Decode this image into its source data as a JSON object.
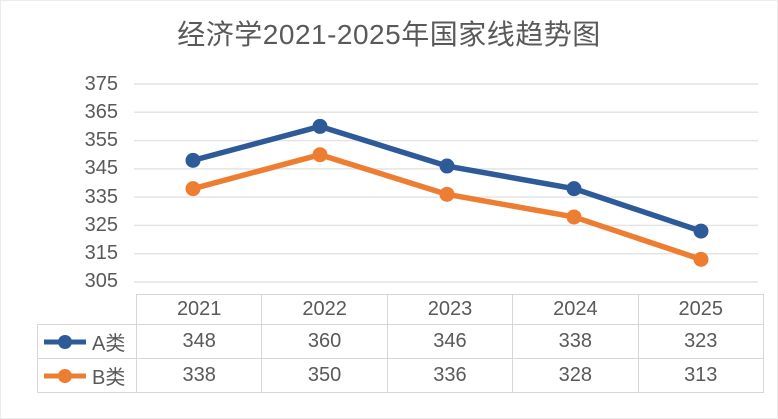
{
  "title": "经济学2021-2025年国家线趋势图",
  "colors": {
    "series_a": "#2e5b97",
    "series_b": "#ed7d31",
    "text": "#595959",
    "gridline": "#e4e4e4",
    "table_border": "#d6d6d6"
  },
  "chart_data": {
    "type": "line",
    "title": "经济学2021-2025年国家线趋势图",
    "categories": [
      "2021",
      "2022",
      "2023",
      "2024",
      "2025"
    ],
    "series": [
      {
        "name": "A类",
        "values": [
          348,
          360,
          346,
          338,
          323
        ],
        "color": "#2e5b97"
      },
      {
        "name": "B类",
        "values": [
          338,
          350,
          336,
          328,
          313
        ],
        "color": "#ed7d31"
      }
    ],
    "ylim": [
      305,
      375
    ],
    "ytick_step": 10,
    "yticks": [
      375,
      365,
      355,
      345,
      335,
      325,
      315,
      305
    ],
    "grid": "horizontal",
    "markers": "circle",
    "legend_position": "table-left-column",
    "xlabel": "",
    "ylabel": ""
  }
}
